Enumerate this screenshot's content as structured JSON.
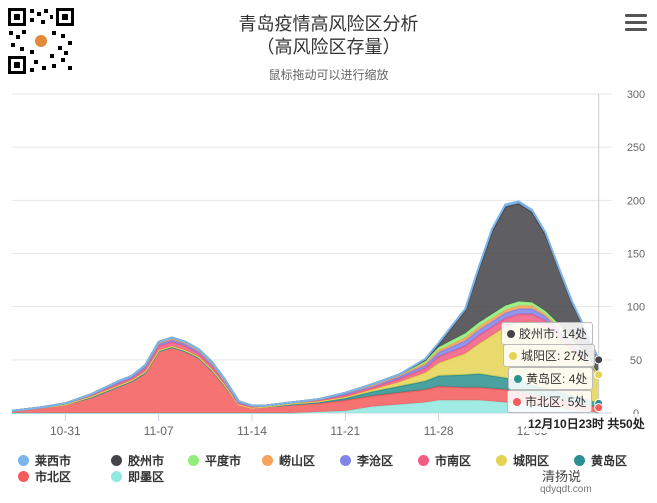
{
  "header": {
    "title_line1": "青岛疫情高风险区分析",
    "title_line2": "（高风险区存量）",
    "subtitle": "鼠标拖动可以进行缩放"
  },
  "menu_icon": "hamburger-icon",
  "qr_icon": "qr-code-icon",
  "watermark": {
    "text": "清扬说",
    "url": "qdyqdt.com"
  },
  "tooltip": {
    "items": [
      {
        "name": "胶州市",
        "value": "14处",
        "color": "#434348"
      },
      {
        "name": "城阳区",
        "value": "27处",
        "color": "#e4d354"
      },
      {
        "name": "黄岛区",
        "value": "4处",
        "color": "#2b908f"
      },
      {
        "name": "市北区",
        "value": "5处",
        "color": "#f45b5b"
      }
    ],
    "total_label": "12月10日23时 共50处"
  },
  "chart_data": {
    "type": "area",
    "stacked": true,
    "x_ticks": [
      "10-31",
      "11-07",
      "11-14",
      "11-21",
      "11-28",
      "12-05"
    ],
    "x_start": "10-27",
    "x_end": "12-11",
    "ylim": [
      0,
      300
    ],
    "y_ticks": [
      0,
      50,
      100,
      150,
      200,
      250,
      300
    ],
    "y_axis_side": "right",
    "grid": true,
    "legend_position": "bottom",
    "x": [
      "10-27",
      "10-29",
      "10-31",
      "11-02",
      "11-04",
      "11-05",
      "11-06",
      "11-07",
      "11-08",
      "11-09",
      "11-10",
      "11-11",
      "11-12",
      "11-13",
      "11-14",
      "11-15",
      "11-17",
      "11-19",
      "11-21",
      "11-23",
      "11-25",
      "11-27",
      "11-28",
      "11-30",
      "12-01",
      "12-02",
      "12-03",
      "12-04",
      "12-05",
      "12-06",
      "12-07",
      "12-08",
      "12-09",
      "12-10"
    ],
    "series": [
      {
        "name": "莱西市",
        "color": "#7cb5ec",
        "values": [
          0,
          0,
          0,
          0,
          0,
          0,
          0,
          0,
          0,
          0,
          0,
          0,
          0,
          0,
          0,
          0,
          0,
          0,
          0,
          0,
          0,
          1,
          1,
          1,
          2,
          2,
          2,
          2,
          2,
          2,
          1,
          1,
          1,
          0
        ]
      },
      {
        "name": "胶州市",
        "color": "#434348",
        "values": [
          0,
          0,
          0,
          0,
          0,
          0,
          0,
          0,
          0,
          0,
          0,
          0,
          0,
          0,
          0,
          0,
          0,
          0,
          0,
          0,
          0,
          1,
          3,
          22,
          50,
          78,
          93,
          92,
          85,
          72,
          52,
          35,
          22,
          14
        ]
      },
      {
        "name": "平度市",
        "color": "#90ed7d",
        "values": [
          0,
          0,
          0,
          0,
          0,
          0,
          0,
          1,
          1,
          1,
          1,
          1,
          1,
          0,
          0,
          0,
          0,
          0,
          0,
          1,
          1,
          2,
          3,
          4,
          4,
          4,
          4,
          4,
          3,
          3,
          3,
          2,
          2,
          0
        ]
      },
      {
        "name": "崂山区",
        "color": "#f7a35c",
        "values": [
          0,
          0,
          0,
          0,
          1,
          1,
          1,
          1,
          1,
          1,
          1,
          1,
          1,
          1,
          0,
          0,
          0,
          0,
          1,
          1,
          1,
          2,
          2,
          3,
          3,
          3,
          3,
          3,
          3,
          2,
          2,
          2,
          1,
          0
        ]
      },
      {
        "name": "李沧区",
        "color": "#8085e9",
        "values": [
          0,
          0,
          0,
          1,
          1,
          1,
          2,
          2,
          2,
          2,
          2,
          2,
          1,
          1,
          1,
          0,
          0,
          1,
          1,
          1,
          2,
          3,
          4,
          5,
          5,
          5,
          5,
          5,
          5,
          4,
          4,
          3,
          2,
          0
        ]
      },
      {
        "name": "市南区",
        "color": "#f15c80",
        "values": [
          0,
          0,
          1,
          1,
          2,
          2,
          3,
          4,
          4,
          4,
          3,
          3,
          2,
          1,
          1,
          1,
          1,
          1,
          2,
          2,
          3,
          4,
          6,
          7,
          8,
          8,
          8,
          8,
          7,
          6,
          5,
          4,
          3,
          0
        ]
      },
      {
        "name": "城阳区",
        "color": "#e4d354",
        "values": [
          0,
          0,
          0,
          1,
          1,
          1,
          1,
          1,
          1,
          1,
          1,
          1,
          1,
          0,
          0,
          0,
          1,
          1,
          1,
          2,
          4,
          8,
          12,
          20,
          28,
          38,
          48,
          55,
          60,
          58,
          50,
          42,
          35,
          27
        ]
      },
      {
        "name": "黄岛区",
        "color": "#2b908f",
        "values": [
          0,
          0,
          0,
          0,
          0,
          0,
          0,
          0,
          0,
          0,
          0,
          0,
          0,
          0,
          0,
          0,
          0,
          1,
          2,
          4,
          6,
          8,
          10,
          12,
          13,
          12,
          11,
          10,
          9,
          8,
          7,
          6,
          5,
          4
        ]
      },
      {
        "name": "市北区",
        "color": "#f45b5b",
        "values": [
          2,
          5,
          8,
          15,
          25,
          30,
          38,
          58,
          62,
          58,
          52,
          40,
          25,
          8,
          5,
          6,
          8,
          8,
          10,
          10,
          11,
          12,
          13,
          12,
          12,
          12,
          12,
          11,
          10,
          9,
          8,
          7,
          6,
          5
        ]
      },
      {
        "name": "即墨区",
        "color": "#91e8e1",
        "values": [
          0,
          0,
          0,
          0,
          0,
          0,
          0,
          0,
          0,
          0,
          0,
          0,
          0,
          0,
          0,
          0,
          0,
          1,
          2,
          6,
          8,
          10,
          12,
          12,
          12,
          11,
          10,
          9,
          7,
          6,
          5,
          3,
          2,
          0
        ]
      }
    ],
    "legend_order": [
      "莱西市",
      "胶州市",
      "平度市",
      "崂山区",
      "李沧区",
      "市南区",
      "城阳区",
      "黄岛区",
      "市北区",
      "即墨区"
    ]
  }
}
